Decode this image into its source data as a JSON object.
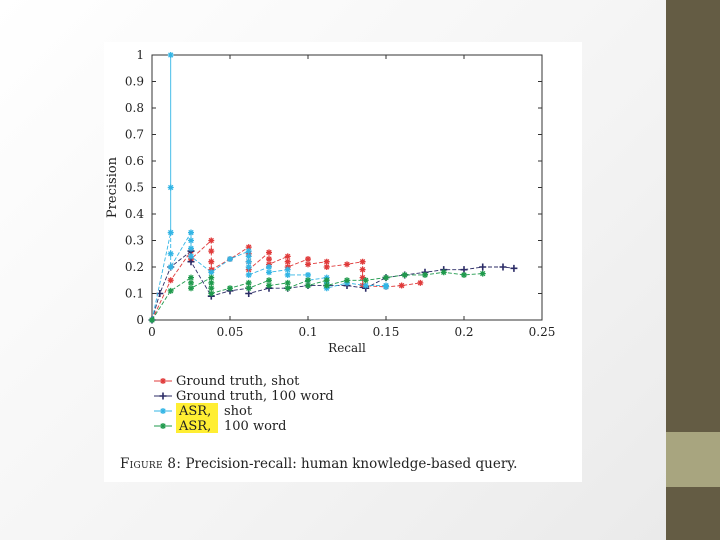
{
  "figure": {
    "caption_label": "Figure 8:",
    "caption_text": "Precision-recall: human knowledge-based query."
  },
  "colors": {
    "ground_truth_shot": "#e03b3b",
    "ground_truth_100_word": "#2b2b66",
    "asr_shot": "#33b5e5",
    "asr_100_word": "#1f9a4c",
    "highlight": "#ffee33",
    "slide_sidebar": "#645c44",
    "slide_accent": "#a8a57f"
  },
  "chart_data": {
    "type": "line",
    "xlabel": "Recall",
    "ylabel": "Precision",
    "xlim": [
      0,
      0.25
    ],
    "ylim": [
      0,
      1
    ],
    "xticks": [
      "0",
      "0.05",
      "0.1",
      "0.15",
      "0.2",
      "0.25"
    ],
    "yticks": [
      "0",
      "0.1",
      "0.2",
      "0.3",
      "0.4",
      "0.5",
      "0.6",
      "0.7",
      "0.8",
      "0.9",
      "1"
    ],
    "grid": false,
    "legend_position": "below",
    "series": [
      {
        "name": "Ground truth, shot",
        "color": "#e03b3b",
        "marker": "star",
        "points": [
          [
            0,
            0
          ],
          [
            0.012,
            0.15
          ],
          [
            0.025,
            0.26
          ],
          [
            0.025,
            0.23
          ],
          [
            0.038,
            0.3
          ],
          [
            0.038,
            0.26
          ],
          [
            0.038,
            0.22
          ],
          [
            0.038,
            0.19
          ],
          [
            0.05,
            0.23
          ],
          [
            0.062,
            0.275
          ],
          [
            0.062,
            0.25
          ],
          [
            0.062,
            0.22
          ],
          [
            0.062,
            0.19
          ],
          [
            0.075,
            0.255
          ],
          [
            0.075,
            0.23
          ],
          [
            0.075,
            0.21
          ],
          [
            0.087,
            0.24
          ],
          [
            0.087,
            0.22
          ],
          [
            0.087,
            0.2
          ],
          [
            0.1,
            0.23
          ],
          [
            0.1,
            0.21
          ],
          [
            0.112,
            0.22
          ],
          [
            0.112,
            0.2
          ],
          [
            0.125,
            0.21
          ],
          [
            0.135,
            0.22
          ],
          [
            0.135,
            0.19
          ],
          [
            0.135,
            0.16
          ],
          [
            0.135,
            0.13
          ],
          [
            0.15,
            0.125
          ],
          [
            0.16,
            0.13
          ],
          [
            0.172,
            0.14
          ]
        ]
      },
      {
        "name": "Ground truth, 100 word",
        "color": "#2b2b66",
        "marker": "plus",
        "points": [
          [
            0,
            0
          ],
          [
            0.005,
            0.1
          ],
          [
            0.012,
            0.2
          ],
          [
            0.025,
            0.26
          ],
          [
            0.025,
            0.22
          ],
          [
            0.038,
            0.09
          ],
          [
            0.05,
            0.11
          ],
          [
            0.062,
            0.12
          ],
          [
            0.062,
            0.1
          ],
          [
            0.075,
            0.12
          ],
          [
            0.087,
            0.12
          ],
          [
            0.1,
            0.13
          ],
          [
            0.112,
            0.13
          ],
          [
            0.125,
            0.13
          ],
          [
            0.137,
            0.12
          ],
          [
            0.15,
            0.16
          ],
          [
            0.162,
            0.17
          ],
          [
            0.175,
            0.18
          ],
          [
            0.187,
            0.19
          ],
          [
            0.2,
            0.19
          ],
          [
            0.212,
            0.2
          ],
          [
            0.225,
            0.2
          ],
          [
            0.232,
            0.195
          ]
        ]
      },
      {
        "name": "ASR, shot",
        "color": "#33b5e5",
        "marker": "star",
        "points": [
          [
            0,
            0
          ],
          [
            0.012,
            0.33
          ],
          [
            0.012,
            0.5
          ],
          [
            0.012,
            1.0
          ],
          [
            0.012,
            0.25
          ],
          [
            0.012,
            0.2
          ],
          [
            0.025,
            0.33
          ],
          [
            0.025,
            0.3
          ],
          [
            0.025,
            0.27
          ],
          [
            0.025,
            0.24
          ],
          [
            0.038,
            0.18
          ],
          [
            0.05,
            0.23
          ],
          [
            0.062,
            0.26
          ],
          [
            0.062,
            0.24
          ],
          [
            0.062,
            0.22
          ],
          [
            0.062,
            0.2
          ],
          [
            0.062,
            0.17
          ],
          [
            0.075,
            0.2
          ],
          [
            0.075,
            0.18
          ],
          [
            0.087,
            0.19
          ],
          [
            0.087,
            0.17
          ],
          [
            0.1,
            0.17
          ],
          [
            0.1,
            0.15
          ],
          [
            0.112,
            0.16
          ],
          [
            0.112,
            0.14
          ],
          [
            0.112,
            0.12
          ],
          [
            0.125,
            0.14
          ],
          [
            0.137,
            0.13
          ],
          [
            0.15,
            0.13
          ],
          [
            0.15,
            0.125
          ]
        ]
      },
      {
        "name": "ASR, 100 word",
        "color": "#1f9a4c",
        "marker": "star",
        "points": [
          [
            0,
            0
          ],
          [
            0.012,
            0.11
          ],
          [
            0.025,
            0.16
          ],
          [
            0.025,
            0.14
          ],
          [
            0.025,
            0.12
          ],
          [
            0.038,
            0.16
          ],
          [
            0.038,
            0.14
          ],
          [
            0.038,
            0.12
          ],
          [
            0.038,
            0.1
          ],
          [
            0.05,
            0.12
          ],
          [
            0.062,
            0.14
          ],
          [
            0.062,
            0.12
          ],
          [
            0.075,
            0.15
          ],
          [
            0.075,
            0.13
          ],
          [
            0.087,
            0.14
          ],
          [
            0.087,
            0.12
          ],
          [
            0.1,
            0.15
          ],
          [
            0.1,
            0.13
          ],
          [
            0.112,
            0.15
          ],
          [
            0.112,
            0.13
          ],
          [
            0.125,
            0.15
          ],
          [
            0.137,
            0.15
          ],
          [
            0.15,
            0.16
          ],
          [
            0.162,
            0.17
          ],
          [
            0.175,
            0.17
          ],
          [
            0.187,
            0.18
          ],
          [
            0.2,
            0.17
          ],
          [
            0.212,
            0.175
          ]
        ]
      }
    ],
    "legend": [
      {
        "label_prefix": "",
        "label": "Ground truth, shot",
        "highlight": false
      },
      {
        "label_prefix": "",
        "label": "Ground truth, 100 word",
        "highlight": false
      },
      {
        "label_prefix": "ASR,",
        "label": "shot",
        "highlight": true
      },
      {
        "label_prefix": "ASR,",
        "label": "100 word",
        "highlight": true
      }
    ]
  }
}
